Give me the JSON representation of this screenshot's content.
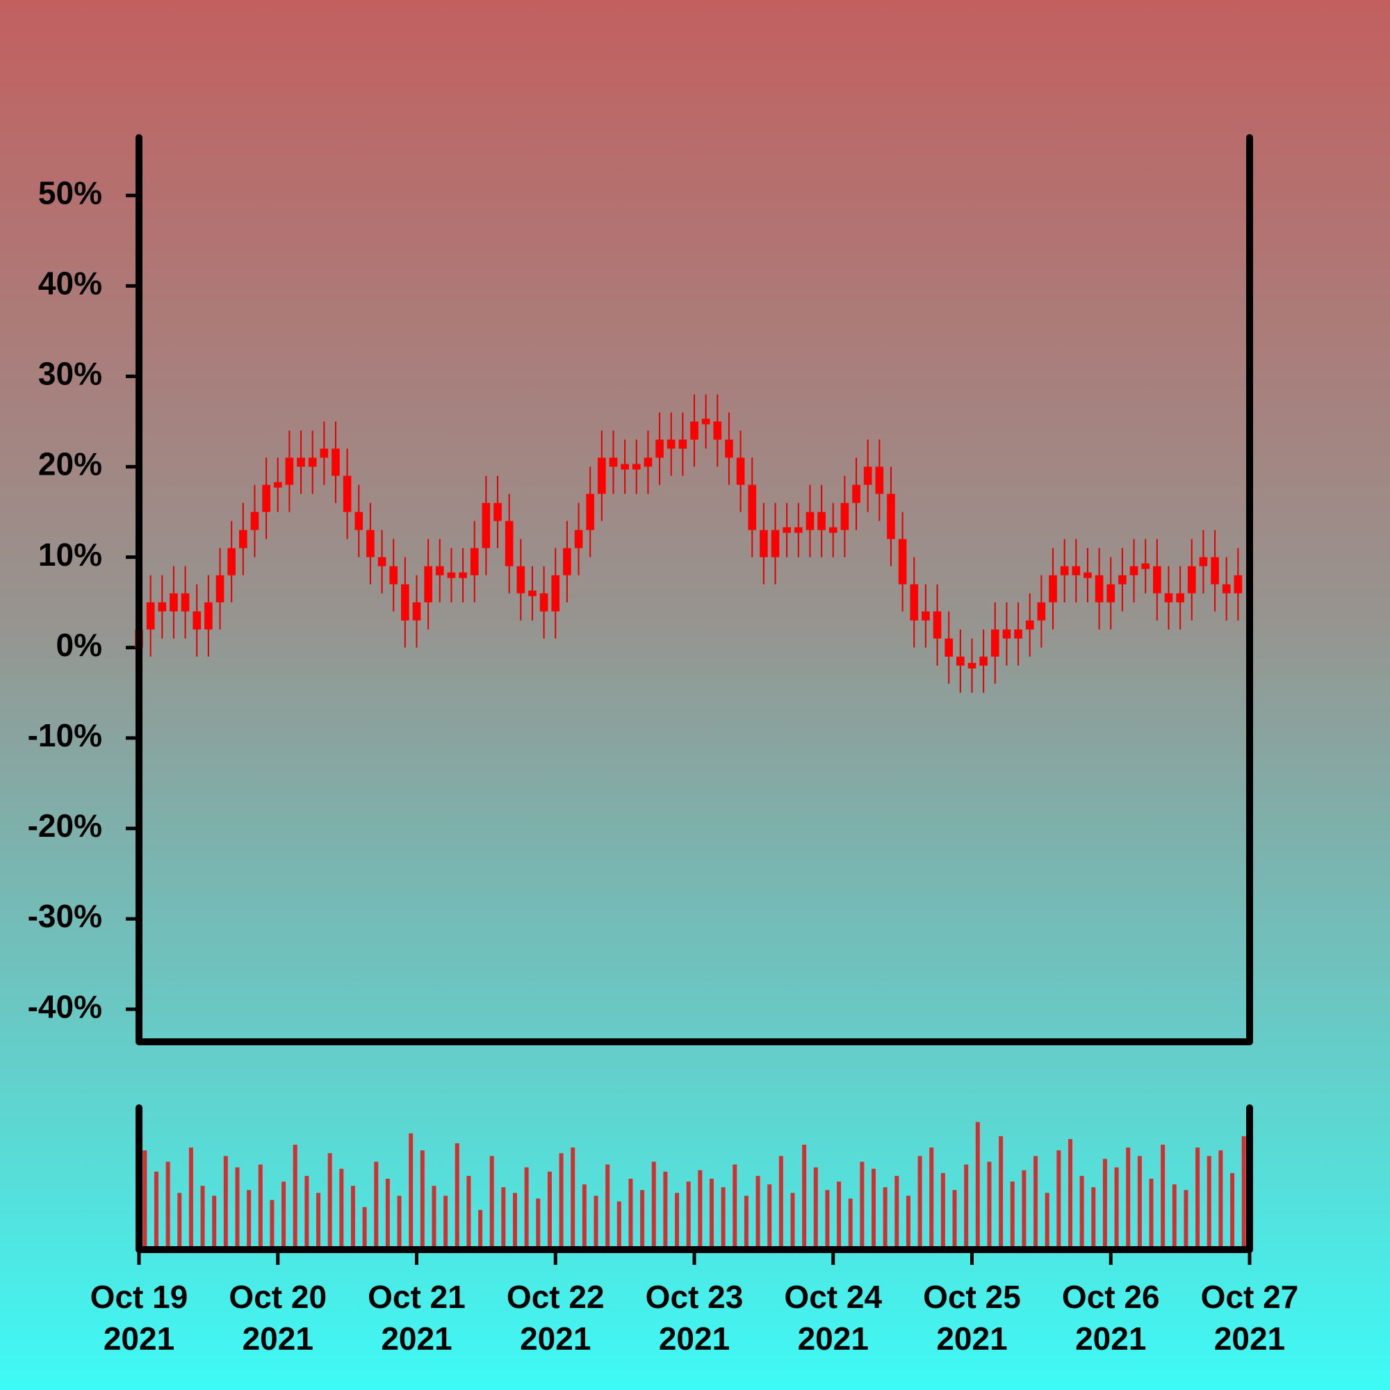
{
  "chart_data": {
    "type": "candlestick",
    "x": [
      "2021-10-19 00:00",
      "2021-10-19 02:00",
      "2021-10-19 04:00",
      "2021-10-19 06:00",
      "2021-10-19 08:00",
      "2021-10-19 10:00",
      "2021-10-19 12:00",
      "2021-10-19 14:00",
      "2021-10-19 16:00",
      "2021-10-19 18:00",
      "2021-10-19 20:00",
      "2021-10-19 22:00",
      "2021-10-20 00:00",
      "2021-10-20 02:00",
      "2021-10-20 04:00",
      "2021-10-20 06:00",
      "2021-10-20 08:00",
      "2021-10-20 10:00",
      "2021-10-20 12:00",
      "2021-10-20 14:00",
      "2021-10-20 16:00",
      "2021-10-20 18:00",
      "2021-10-20 20:00",
      "2021-10-20 22:00",
      "2021-10-21 00:00",
      "2021-10-21 02:00",
      "2021-10-21 04:00",
      "2021-10-21 06:00",
      "2021-10-21 08:00",
      "2021-10-21 10:00",
      "2021-10-21 12:00",
      "2021-10-21 14:00",
      "2021-10-21 16:00",
      "2021-10-21 18:00",
      "2021-10-21 20:00",
      "2021-10-21 22:00",
      "2021-10-22 00:00",
      "2021-10-22 02:00",
      "2021-10-22 04:00",
      "2021-10-22 06:00",
      "2021-10-22 08:00",
      "2021-10-22 10:00",
      "2021-10-22 12:00",
      "2021-10-22 14:00",
      "2021-10-22 16:00",
      "2021-10-22 18:00",
      "2021-10-22 20:00",
      "2021-10-22 22:00",
      "2021-10-23 00:00",
      "2021-10-23 02:00",
      "2021-10-23 04:00",
      "2021-10-23 06:00",
      "2021-10-23 08:00",
      "2021-10-23 10:00",
      "2021-10-23 12:00",
      "2021-10-23 14:00",
      "2021-10-23 16:00",
      "2021-10-23 18:00",
      "2021-10-23 20:00",
      "2021-10-23 22:00",
      "2021-10-24 00:00",
      "2021-10-24 02:00",
      "2021-10-24 04:00",
      "2021-10-24 06:00",
      "2021-10-24 08:00",
      "2021-10-24 10:00",
      "2021-10-24 12:00",
      "2021-10-24 14:00",
      "2021-10-24 16:00",
      "2021-10-24 18:00",
      "2021-10-24 20:00",
      "2021-10-24 22:00",
      "2021-10-25 00:00",
      "2021-10-25 02:00",
      "2021-10-25 04:00",
      "2021-10-25 06:00",
      "2021-10-25 08:00",
      "2021-10-25 10:00",
      "2021-10-25 12:00",
      "2021-10-25 14:00",
      "2021-10-25 16:00",
      "2021-10-25 18:00",
      "2021-10-25 20:00",
      "2021-10-25 22:00",
      "2021-10-26 00:00",
      "2021-10-26 02:00",
      "2021-10-26 04:00",
      "2021-10-26 06:00",
      "2021-10-26 08:00",
      "2021-10-26 10:00",
      "2021-10-26 12:00",
      "2021-10-26 14:00",
      "2021-10-26 16:00",
      "2021-10-26 18:00",
      "2021-10-26 20:00",
      "2021-10-26 22:00"
    ],
    "open": [
      0,
      2,
      5,
      4,
      6,
      4,
      2,
      5,
      8,
      11,
      13,
      15,
      18,
      18,
      21,
      20,
      21,
      22,
      19,
      15,
      13,
      10,
      9,
      7,
      3,
      5,
      9,
      8,
      8,
      8,
      11,
      16,
      14,
      9,
      6,
      6,
      4,
      8,
      11,
      13,
      17,
      21,
      20,
      20,
      20,
      21,
      23,
      22,
      23,
      25,
      25,
      23,
      21,
      18,
      13,
      10,
      13,
      13,
      13,
      15,
      13,
      13,
      16,
      18,
      20,
      17,
      12,
      7,
      3,
      4,
      1,
      -1,
      -2,
      -2,
      -1,
      2,
      1,
      2,
      3,
      5,
      8,
      9,
      8,
      8,
      5,
      7,
      8,
      9,
      9,
      6,
      5,
      6,
      9,
      10,
      7,
      6
    ],
    "high": [
      5,
      8,
      8,
      9,
      9,
      7,
      8,
      11,
      14,
      16,
      18,
      21,
      21,
      24,
      24,
      24,
      25,
      25,
      22,
      18,
      16,
      13,
      12,
      10,
      8,
      12,
      12,
      11,
      11,
      14,
      19,
      19,
      17,
      12,
      9,
      9,
      11,
      14,
      16,
      20,
      24,
      24,
      23,
      23,
      24,
      26,
      26,
      26,
      28,
      28,
      28,
      26,
      24,
      21,
      16,
      16,
      16,
      16,
      18,
      18,
      16,
      19,
      21,
      23,
      23,
      20,
      15,
      10,
      7,
      7,
      4,
      2,
      1,
      2,
      5,
      5,
      5,
      6,
      8,
      11,
      12,
      12,
      11,
      11,
      10,
      11,
      12,
      12,
      12,
      9,
      9,
      12,
      13,
      13,
      10,
      11
    ],
    "low": [
      -3,
      -1,
      1,
      1,
      1,
      -1,
      -1,
      2,
      5,
      8,
      10,
      12,
      15,
      15,
      17,
      17,
      18,
      16,
      12,
      10,
      7,
      6,
      4,
      0,
      0,
      2,
      5,
      5,
      5,
      5,
      8,
      11,
      6,
      3,
      3,
      1,
      1,
      5,
      8,
      10,
      14,
      17,
      17,
      17,
      17,
      18,
      19,
      19,
      20,
      22,
      20,
      18,
      15,
      10,
      7,
      7,
      10,
      10,
      10,
      10,
      10,
      10,
      13,
      15,
      14,
      9,
      4,
      0,
      0,
      -2,
      -4,
      -5,
      -5,
      -5,
      -4,
      -2,
      -2,
      -1,
      0,
      2,
      5,
      5,
      5,
      2,
      2,
      4,
      5,
      6,
      3,
      2,
      2,
      3,
      6,
      4,
      3,
      3
    ],
    "close": [
      2,
      5,
      4,
      6,
      4,
      2,
      5,
      8,
      11,
      13,
      15,
      18,
      18,
      21,
      20,
      21,
      22,
      19,
      15,
      13,
      10,
      9,
      7,
      3,
      5,
      9,
      8,
      8,
      8,
      11,
      16,
      14,
      9,
      6,
      6,
      4,
      8,
      11,
      13,
      17,
      21,
      20,
      20,
      20,
      21,
      23,
      22,
      23,
      25,
      25,
      23,
      21,
      18,
      13,
      10,
      13,
      13,
      13,
      15,
      13,
      13,
      16,
      18,
      20,
      17,
      12,
      7,
      3,
      4,
      1,
      -1,
      -2,
      -2,
      -1,
      2,
      1,
      2,
      3,
      5,
      8,
      9,
      8,
      8,
      5,
      7,
      8,
      9,
      9,
      6,
      5,
      6,
      9,
      10,
      7,
      6,
      8
    ],
    "volume": [
      70,
      55,
      62,
      40,
      72,
      45,
      38,
      66,
      58,
      42,
      60,
      35,
      48,
      74,
      52,
      40,
      68,
      57,
      45,
      30,
      62,
      50,
      38,
      82,
      70,
      45,
      38,
      75,
      52,
      28,
      66,
      44,
      40,
      58,
      36,
      55,
      68,
      72,
      46,
      38,
      60,
      34,
      50,
      42,
      62,
      55,
      40,
      48,
      56,
      50,
      44,
      60,
      38,
      52,
      46,
      66,
      40,
      74,
      58,
      42,
      48,
      36,
      62,
      57,
      44,
      52,
      38,
      66,
      72,
      54,
      42,
      60,
      90,
      62,
      80,
      48,
      56,
      66,
      40,
      70,
      78,
      52,
      44,
      64,
      58,
      72,
      66,
      50,
      74,
      46,
      42,
      72,
      66,
      70,
      54,
      80
    ],
    "color": "#ff0000",
    "wick_color": "#e00000",
    "volume_color": "#d23030",
    "xlim": [
      "2021-10-19 00:00",
      "2021-10-27 00:00"
    ],
    "xticks": [
      {
        "value": "2021-10-19 00:00",
        "label": "Oct 19\n2021"
      },
      {
        "value": "2021-10-20 00:00",
        "label": "Oct 20\n2021"
      },
      {
        "value": "2021-10-21 00:00",
        "label": "Oct 21\n2021"
      },
      {
        "value": "2021-10-22 00:00",
        "label": "Oct 22\n2021"
      },
      {
        "value": "2021-10-23 00:00",
        "label": "Oct 23\n2021"
      },
      {
        "value": "2021-10-24 00:00",
        "label": "Oct 24\n2021"
      },
      {
        "value": "2021-10-25 00:00",
        "label": "Oct 25\n2021"
      },
      {
        "value": "2021-10-26 00:00",
        "label": "Oct 26\n2021"
      },
      {
        "value": "2021-10-27 00:00",
        "label": "Oct 27\n2021"
      }
    ],
    "ylim": [
      -43.6,
      56.4
    ],
    "yticks": [
      {
        "value": -40,
        "label": "-40%"
      },
      {
        "value": -30,
        "label": "-30%"
      },
      {
        "value": -20,
        "label": "-20%"
      },
      {
        "value": -10,
        "label": "-10%"
      },
      {
        "value": 0,
        "label": "0%"
      },
      {
        "value": 10,
        "label": "10%"
      },
      {
        "value": 20,
        "label": "20%"
      },
      {
        "value": 30,
        "label": "30%"
      },
      {
        "value": 40,
        "label": "40%"
      },
      {
        "value": 50,
        "label": "50%"
      }
    ],
    "volume_ylim": [
      0,
      100
    ]
  }
}
